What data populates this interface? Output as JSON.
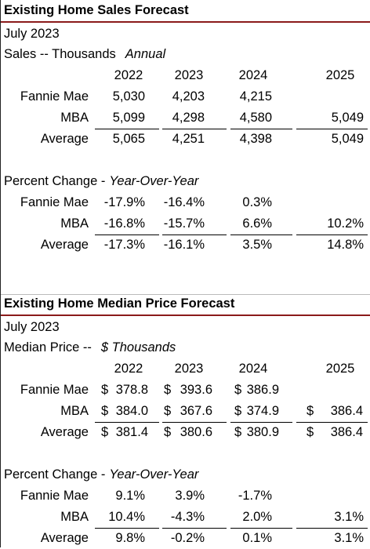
{
  "sections": [
    {
      "title": "Existing Home Sales Forecast",
      "date": "July 2023",
      "subtitle": "Sales -- Thousands",
      "subtitle_note": "Annual",
      "years": [
        "2022",
        "2023",
        "2024",
        "2025"
      ],
      "tables": [
        {
          "rows": [
            {
              "label": "Fannie Mae",
              "cells": [
                "5,030",
                "4,203",
                "4,215",
                null
              ]
            },
            {
              "label": "MBA",
              "cells": [
                "5,099",
                "4,298",
                "4,580",
                "5,049"
              ]
            },
            {
              "label": "Average",
              "cells": [
                "5,065",
                "4,251",
                "4,398",
                "5,049"
              ]
            }
          ]
        },
        {
          "heading": "Percent Change -",
          "heading_note": "Year-Over-Year",
          "rows": [
            {
              "label": "Fannie Mae",
              "cells": [
                "-17.9%",
                "-16.4%",
                "0.3%",
                null
              ]
            },
            {
              "label": "MBA",
              "cells": [
                "-16.8%",
                "-15.7%",
                "6.6%",
                "10.2%"
              ]
            },
            {
              "label": "Average",
              "cells": [
                "-17.3%",
                "-16.1%",
                "3.5%",
                "14.8%"
              ]
            }
          ]
        }
      ]
    },
    {
      "title": "Existing Home Median Price Forecast",
      "date": "July 2023",
      "subtitle": "Median Price --",
      "subtitle_note": "$ Thousands",
      "years": [
        "2022",
        "2023",
        "2024",
        "2025"
      ],
      "tables": [
        {
          "rows": [
            {
              "label": "Fannie Mae",
              "cells": [
                {
                  "sign": "$",
                  "amount": "378.8"
                },
                {
                  "sign": "$",
                  "amount": "393.6"
                },
                {
                  "sign": "$",
                  "amount": "386.9"
                },
                null
              ]
            },
            {
              "label": "MBA",
              "cells": [
                {
                  "sign": "$",
                  "amount": "384.0"
                },
                {
                  "sign": "$",
                  "amount": "367.6"
                },
                {
                  "sign": "$",
                  "amount": "374.9"
                },
                {
                  "sign": "$",
                  "amount": "386.4"
                }
              ]
            },
            {
              "label": "Average",
              "cells": [
                {
                  "sign": "$",
                  "amount": "381.4"
                },
                {
                  "sign": "$",
                  "amount": "380.6"
                },
                {
                  "sign": "$",
                  "amount": "380.9"
                },
                {
                  "sign": "$",
                  "amount": "386.4"
                }
              ]
            }
          ]
        },
        {
          "heading": "Percent Change -",
          "heading_note": "Year-Over-Year",
          "rows": [
            {
              "label": "Fannie Mae",
              "cells": [
                "9.1%",
                "3.9%",
                "-1.7%",
                null
              ]
            },
            {
              "label": "MBA",
              "cells": [
                "10.4%",
                "-4.3%",
                "2.0%",
                "3.1%"
              ]
            },
            {
              "label": "Average",
              "cells": [
                "9.8%",
                "-0.2%",
                "0.1%",
                "3.1%"
              ]
            }
          ]
        }
      ]
    }
  ]
}
